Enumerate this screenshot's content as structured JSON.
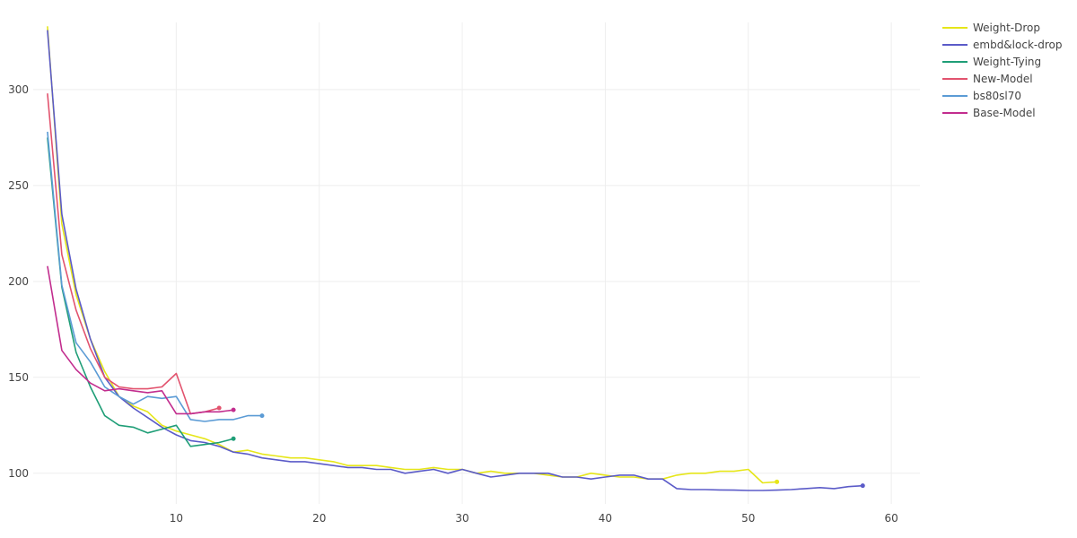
{
  "chart_data": {
    "type": "line",
    "title": "",
    "xlabel": "",
    "ylabel": "",
    "xlim": [
      0,
      62
    ],
    "ylim": [
      84,
      335
    ],
    "xticks": [
      10,
      20,
      30,
      40,
      50,
      60
    ],
    "yticks": [
      100,
      150,
      200,
      250,
      300
    ],
    "grid": true,
    "legend_position": "top-right",
    "series": [
      {
        "name": "Weight-Drop",
        "color": "#e6e619",
        "x": [
          1,
          2,
          3,
          4,
          5,
          6,
          7,
          8,
          9,
          10,
          11,
          12,
          13,
          14,
          15,
          16,
          17,
          18,
          19,
          20,
          21,
          22,
          23,
          24,
          25,
          26,
          27,
          28,
          29,
          30,
          31,
          32,
          33,
          34,
          35,
          36,
          37,
          38,
          39,
          40,
          41,
          42,
          43,
          44,
          45,
          46,
          47,
          48,
          49,
          50,
          51,
          52
        ],
        "y": [
          333,
          230,
          193,
          170,
          153,
          140,
          135,
          132,
          125,
          122,
          120,
          118,
          115,
          111,
          112,
          110,
          109,
          108,
          108,
          107,
          106,
          104,
          104,
          104,
          103,
          102,
          102,
          103,
          102,
          102,
          100,
          101,
          100,
          100,
          100,
          99,
          98,
          98,
          100,
          99,
          98,
          98,
          97,
          97,
          99,
          100,
          100,
          101,
          101,
          102,
          95,
          95.5
        ]
      },
      {
        "name": "embd&lock-drop",
        "color": "#5b5bc8",
        "x": [
          1,
          2,
          3,
          4,
          5,
          6,
          7,
          8,
          9,
          10,
          11,
          12,
          13,
          14,
          15,
          16,
          17,
          18,
          19,
          20,
          21,
          22,
          23,
          24,
          25,
          26,
          27,
          28,
          29,
          30,
          31,
          32,
          33,
          34,
          35,
          36,
          37,
          38,
          39,
          40,
          41,
          42,
          43,
          44,
          45,
          46,
          47,
          48,
          49,
          50,
          51,
          52,
          53,
          54,
          55,
          56,
          57,
          58
        ],
        "y": [
          331,
          235,
          196,
          170,
          150,
          140,
          134,
          129,
          124,
          120,
          117,
          116,
          114,
          111,
          110,
          108,
          107,
          106,
          106,
          105,
          104,
          103,
          103,
          102,
          102,
          100,
          101,
          102,
          100,
          102,
          100,
          98,
          99,
          100,
          100,
          100,
          98,
          98,
          97,
          98,
          99,
          99,
          97,
          97,
          92,
          91.5,
          91.5,
          91.3,
          91.2,
          91,
          91,
          91.2,
          91.5,
          92,
          92.5,
          92,
          93,
          93.5
        ]
      },
      {
        "name": "Weight-Tying",
        "color": "#1f9e77",
        "x": [
          1,
          2,
          3,
          4,
          5,
          6,
          7,
          8,
          9,
          10,
          11,
          12,
          13,
          14
        ],
        "y": [
          275,
          197,
          163,
          145,
          130,
          125,
          124,
          121,
          123,
          125,
          114,
          115,
          116,
          118
        ]
      },
      {
        "name": "New-Model",
        "color": "#e2536e",
        "x": [
          1,
          2,
          3,
          4,
          5,
          6,
          7,
          8,
          9,
          10,
          11,
          12,
          13
        ],
        "y": [
          298,
          214,
          185,
          165,
          150,
          145,
          144,
          144,
          145,
          152,
          131,
          132,
          134
        ]
      },
      {
        "name": "bs80sl70",
        "color": "#5b9bd5",
        "x": [
          1,
          2,
          3,
          4,
          5,
          6,
          7,
          8,
          9,
          10,
          11,
          12,
          13,
          14,
          15,
          16
        ],
        "y": [
          278,
          198,
          168,
          158,
          145,
          140,
          136,
          140,
          139,
          140,
          128,
          127,
          128,
          128,
          130,
          130
        ]
      },
      {
        "name": "Base-Model",
        "color": "#c22d8e",
        "x": [
          1,
          2,
          3,
          4,
          5,
          6,
          7,
          8,
          9,
          10,
          11,
          12,
          13,
          14
        ],
        "y": [
          208,
          164,
          154,
          147,
          143,
          144,
          143,
          142,
          143,
          131,
          131,
          132,
          132,
          133
        ]
      }
    ]
  }
}
